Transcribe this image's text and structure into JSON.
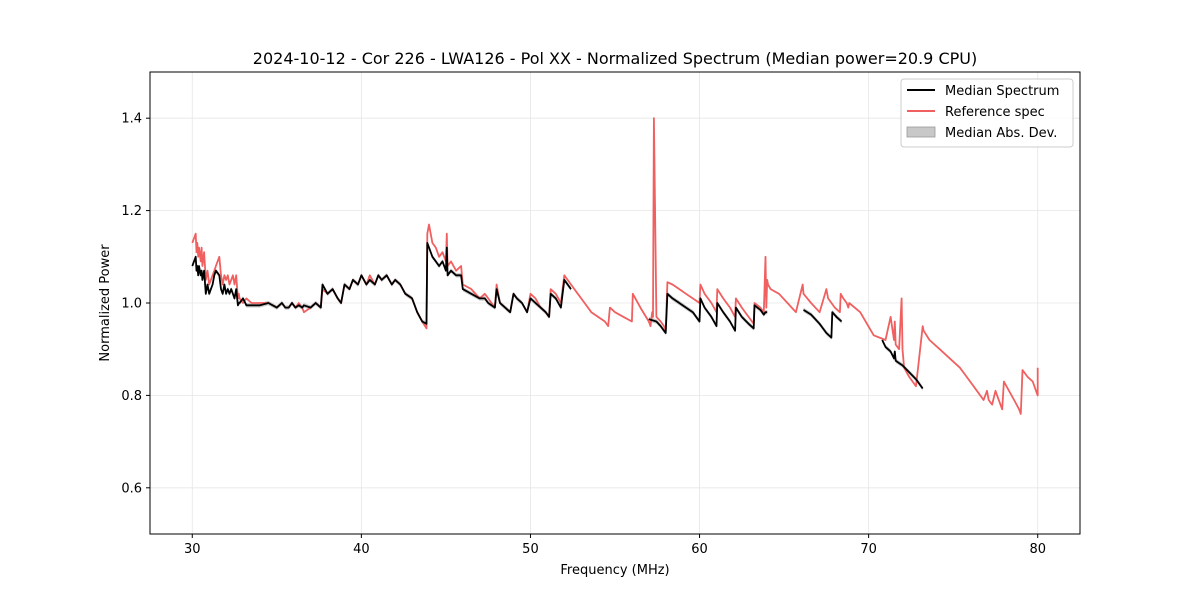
{
  "chart_data": {
    "type": "line",
    "title": "2024-10-12 - Cor 226 - LWA126 - Pol XX - Normalized Spectrum (Median power=20.9 CPU)",
    "xlabel": "Frequency (MHz)",
    "ylabel": "Normalized Power",
    "xlim": [
      27.5,
      82.5
    ],
    "ylim": [
      0.5,
      1.5
    ],
    "xticks": [
      30,
      40,
      50,
      60,
      70,
      80
    ],
    "yticks": [
      0.6,
      0.8,
      1.0,
      1.2,
      1.4
    ],
    "xtick_labels": [
      "30",
      "40",
      "50",
      "60",
      "70",
      "80"
    ],
    "ytick_labels": [
      "0.6",
      "0.8",
      "1.0",
      "1.2",
      "1.4"
    ],
    "grid": true,
    "legend_position": "top-right",
    "legend": [
      {
        "label": "Median Spectrum",
        "kind": "line",
        "color": "#000000"
      },
      {
        "label": "Reference spec",
        "kind": "line",
        "color": "#f06060"
      },
      {
        "label": "Median Abs. Dev.",
        "kind": "patch",
        "color": "#c8c8c8"
      }
    ],
    "series": [
      {
        "name": "Reference spec",
        "color": "#f06060",
        "x": [
          30.0,
          30.1,
          30.2,
          30.25,
          30.3,
          30.35,
          30.4,
          30.5,
          30.55,
          30.6,
          30.7,
          30.8,
          30.9,
          31.0,
          31.1,
          31.2,
          31.3,
          31.4,
          31.6,
          31.7,
          31.8,
          31.9,
          32.0,
          32.1,
          32.2,
          32.3,
          32.4,
          32.5,
          32.6,
          32.7,
          32.75,
          32.8,
          33.0,
          33.2,
          33.5,
          34.0,
          34.5,
          35.0,
          35.3,
          35.5,
          35.7,
          35.9,
          36.1,
          36.3,
          36.5,
          36.6,
          37.0,
          37.3,
          37.6,
          37.7,
          38.0,
          38.3,
          38.6,
          38.8,
          39.0,
          39.3,
          39.5,
          39.8,
          40.0,
          40.3,
          40.5,
          40.8,
          41.0,
          41.2,
          41.5,
          41.8,
          42.0,
          42.3,
          42.6,
          43.0,
          43.3,
          43.6,
          43.85,
          43.9,
          44.0,
          44.2,
          44.4,
          44.6,
          44.8,
          45.0,
          45.05,
          45.1,
          45.3,
          45.6,
          45.9,
          46.0,
          46.5,
          47.0,
          47.3,
          47.5,
          47.9,
          48.0,
          48.2,
          48.5,
          48.8,
          49.0,
          49.2,
          49.5,
          49.8,
          50.0,
          50.3,
          50.6,
          50.9,
          51.1,
          51.2,
          51.5,
          51.8,
          52.0,
          52.4,
          52.8,
          53.2,
          53.6,
          54.0,
          54.4,
          54.6,
          54.7,
          55.0,
          55.5,
          56.0,
          56.05,
          56.5,
          57.0,
          57.1,
          57.2,
          57.25,
          57.3,
          57.45,
          57.7,
          57.9,
          58.0,
          58.1,
          58.4,
          58.8,
          59.2,
          59.6,
          60.0,
          60.05,
          60.3,
          60.7,
          61.0,
          61.05,
          61.4,
          61.8,
          62.1,
          62.15,
          62.5,
          62.9,
          63.2,
          63.25,
          63.6,
          63.8,
          63.9,
          63.95,
          64.0,
          64.05,
          64.2,
          64.7,
          65.2,
          65.7,
          66.1,
          66.15,
          66.6,
          67.1,
          67.5,
          67.6,
          68.0,
          68.3,
          68.35,
          68.5,
          68.7,
          68.8,
          68.85,
          69.5,
          70.3,
          71.0,
          71.3,
          71.5,
          71.55,
          71.6,
          71.8,
          71.95,
          72.0,
          72.05,
          72.1,
          72.4,
          72.8,
          73.2,
          73.25,
          73.6,
          74.2,
          74.8,
          75.4,
          75.8,
          76.0,
          76.4,
          76.8,
          77.0,
          77.1,
          77.3,
          77.5,
          77.6,
          77.9,
          78.0,
          78.3,
          78.6,
          78.9,
          79.0,
          79.1,
          79.4,
          79.7,
          79.9,
          80.0,
          80.0
        ],
        "y": [
          1.13,
          1.14,
          1.15,
          1.11,
          1.13,
          1.1,
          1.12,
          1.09,
          1.12,
          1.08,
          1.11,
          1.05,
          1.07,
          1.04,
          1.05,
          1.06,
          1.07,
          1.08,
          1.1,
          1.06,
          1.04,
          1.06,
          1.05,
          1.06,
          1.04,
          1.05,
          1.06,
          1.04,
          1.06,
          1.01,
          1.02,
          1.01,
          1.0,
          1.01,
          1.0,
          1.0,
          1.0,
          0.99,
          1.0,
          0.99,
          0.99,
          1.0,
          0.99,
          1.0,
          0.99,
          0.98,
          0.99,
          1.0,
          0.99,
          1.03,
          1.02,
          1.03,
          1.01,
          1.0,
          1.04,
          1.03,
          1.05,
          1.04,
          1.06,
          1.04,
          1.06,
          1.04,
          1.06,
          1.05,
          1.06,
          1.04,
          1.05,
          1.04,
          1.02,
          1.01,
          0.98,
          0.96,
          0.945,
          1.15,
          1.17,
          1.13,
          1.12,
          1.1,
          1.11,
          1.09,
          1.15,
          1.08,
          1.09,
          1.07,
          1.08,
          1.04,
          1.03,
          1.01,
          1.02,
          1.01,
          0.99,
          1.04,
          1.0,
          0.99,
          0.98,
          1.02,
          1.01,
          1.0,
          0.98,
          1.02,
          1.01,
          0.99,
          0.98,
          0.97,
          1.03,
          1.02,
          1.0,
          1.06,
          1.04,
          1.02,
          1.0,
          0.98,
          0.97,
          0.96,
          0.95,
          0.99,
          0.98,
          0.97,
          0.96,
          1.02,
          0.99,
          0.96,
          0.95,
          0.98,
          0.97,
          1.4,
          0.97,
          0.96,
          0.95,
          0.94,
          1.045,
          1.04,
          1.03,
          1.02,
          1.01,
          1.0,
          1.04,
          1.02,
          1.0,
          0.98,
          1.03,
          1.01,
          0.99,
          0.97,
          1.01,
          0.99,
          0.97,
          0.955,
          1.0,
          0.99,
          0.98,
          1.1,
          0.99,
          1.05,
          1.04,
          1.03,
          1.02,
          1.0,
          0.98,
          1.04,
          1.02,
          1.0,
          0.98,
          1.03,
          1.01,
          0.99,
          0.98,
          1.02,
          1.01,
          1.0,
          0.99,
          1.0,
          0.98,
          0.93,
          0.92,
          0.97,
          0.92,
          0.96,
          0.91,
          0.9,
          1.01,
          0.9,
          0.88,
          0.86,
          0.84,
          0.82,
          0.95,
          0.94,
          0.92,
          0.9,
          0.88,
          0.86,
          0.84,
          0.83,
          0.81,
          0.79,
          0.81,
          0.79,
          0.78,
          0.81,
          0.8,
          0.77,
          0.83,
          0.81,
          0.79,
          0.77,
          0.76,
          0.855,
          0.84,
          0.83,
          0.81,
          0.8,
          0.86
        ]
      },
      {
        "name": "Median Spectrum",
        "color": "#000000",
        "segments": [
          {
            "x": [
              30.0,
              30.1,
              30.2,
              30.25,
              30.3,
              30.35,
              30.4,
              30.5,
              30.55,
              30.6,
              30.7,
              30.8,
              30.9,
              31.0,
              31.1,
              31.2,
              31.3,
              31.4,
              31.6,
              31.7,
              31.8,
              31.9,
              32.0,
              32.1,
              32.2,
              32.3,
              32.4,
              32.5,
              32.6,
              32.7,
              32.75,
              32.8,
              33.0,
              33.2,
              33.5,
              34.0,
              34.5,
              35.0,
              35.3,
              35.5,
              35.7,
              35.9,
              36.1,
              36.3,
              36.5,
              36.6,
              37.0,
              37.3,
              37.6,
              37.7,
              38.0,
              38.3,
              38.6,
              38.8,
              39.0,
              39.3,
              39.5,
              39.8,
              40.0,
              40.3,
              40.5,
              40.8,
              41.0,
              41.2,
              41.5,
              41.8,
              42.0,
              42.3,
              42.6,
              43.0,
              43.3,
              43.6,
              43.85,
              43.9,
              44.0,
              44.2,
              44.4,
              44.6,
              44.8,
              45.0,
              45.05,
              45.1,
              45.3,
              45.6,
              45.9,
              46.0,
              46.5,
              47.0,
              47.3,
              47.5,
              47.9,
              48.0,
              48.2,
              48.5,
              48.8,
              49.0,
              49.2,
              49.5,
              49.8,
              50.0,
              50.3,
              50.6,
              50.9,
              51.1,
              51.2,
              51.5,
              51.8,
              52.0,
              52.4
            ],
            "y": [
              1.08,
              1.09,
              1.1,
              1.07,
              1.08,
              1.06,
              1.08,
              1.06,
              1.07,
              1.05,
              1.07,
              1.02,
              1.04,
              1.02,
              1.03,
              1.04,
              1.06,
              1.07,
              1.06,
              1.03,
              1.02,
              1.04,
              1.02,
              1.03,
              1.02,
              1.03,
              1.02,
              1.01,
              1.03,
              0.995,
              1.0,
              1.0,
              1.01,
              0.995,
              0.995,
              0.995,
              1.0,
              0.99,
              1.0,
              0.99,
              0.99,
              1.0,
              0.99,
              0.995,
              0.99,
              0.995,
              0.99,
              1.0,
              0.99,
              1.04,
              1.02,
              1.03,
              1.01,
              1.0,
              1.04,
              1.03,
              1.05,
              1.04,
              1.06,
              1.04,
              1.05,
              1.04,
              1.06,
              1.05,
              1.06,
              1.04,
              1.05,
              1.04,
              1.02,
              1.01,
              0.98,
              0.96,
              0.955,
              1.13,
              1.12,
              1.1,
              1.09,
              1.08,
              1.09,
              1.07,
              1.12,
              1.06,
              1.07,
              1.06,
              1.06,
              1.03,
              1.02,
              1.01,
              1.01,
              1.0,
              0.99,
              1.03,
              1.0,
              0.99,
              0.98,
              1.02,
              1.01,
              1.0,
              0.98,
              1.01,
              1.0,
              0.99,
              0.98,
              0.97,
              1.02,
              1.01,
              0.99,
              1.05,
              1.03
            ]
          },
          {
            "x": [
              57.0,
              57.45,
              57.7,
              57.9,
              58.0,
              58.1,
              58.4,
              58.8,
              59.2,
              59.6,
              60.0,
              60.05,
              60.3,
              60.7,
              61.0,
              61.05,
              61.4,
              61.8,
              62.1,
              62.15,
              62.5,
              62.9,
              63.2,
              63.25,
              63.6,
              63.8,
              63.9,
              64.0
            ],
            "y": [
              0.965,
              0.96,
              0.95,
              0.94,
              0.935,
              1.02,
              1.01,
              1.0,
              0.99,
              0.98,
              0.96,
              1.01,
              0.99,
              0.97,
              0.95,
              1.0,
              0.98,
              0.96,
              0.94,
              0.99,
              0.97,
              0.955,
              0.945,
              0.995,
              0.985,
              0.975,
              0.98,
              0.98
            ]
          },
          {
            "x": [
              66.15,
              66.6,
              67.1,
              67.5,
              67.8,
              67.85,
              68.1,
              68.4
            ],
            "y": [
              0.985,
              0.975,
              0.955,
              0.935,
              0.925,
              0.98,
              0.97,
              0.96
            ]
          },
          {
            "x": [
              70.8,
              71.0,
              71.3,
              71.5,
              71.55,
              71.6,
              71.8,
              72.0,
              72.4,
              72.8,
              73.2
            ],
            "y": [
              0.92,
              0.905,
              0.895,
              0.88,
              0.895,
              0.875,
              0.87,
              0.865,
              0.85,
              0.835,
              0.815
            ]
          }
        ]
      }
    ]
  }
}
